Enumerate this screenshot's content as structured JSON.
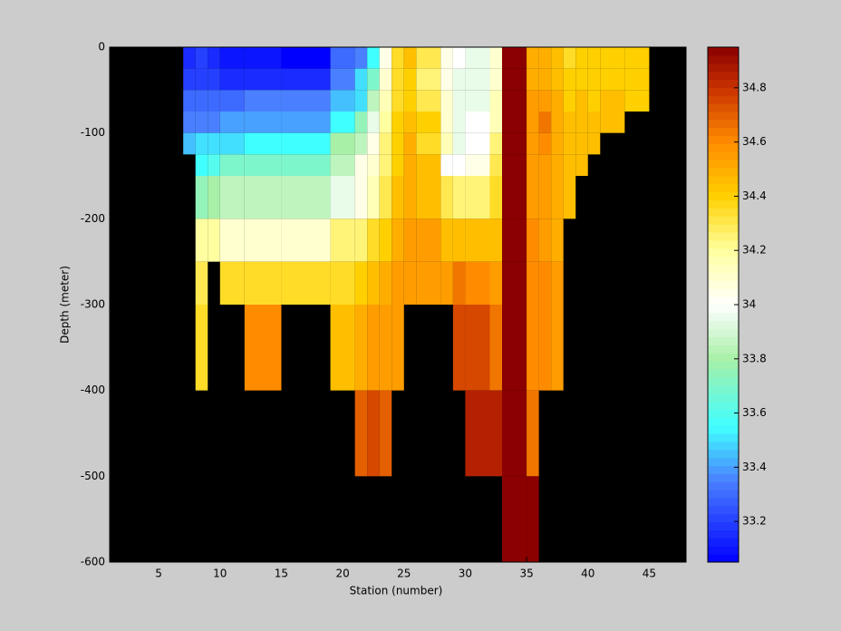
{
  "chart_data": {
    "type": "heatmap",
    "x_label": "Station (number)",
    "y_label": "Depth (meter)",
    "xlim": [
      1,
      48
    ],
    "xticks": [
      5,
      10,
      15,
      20,
      25,
      30,
      35,
      40,
      45
    ],
    "ylim": [
      -600,
      0
    ],
    "yticks": [
      -600,
      -500,
      -400,
      -300,
      -200,
      -100,
      0
    ],
    "clim": [
      33.05,
      34.95
    ],
    "cticks": [
      33.2,
      33.4,
      33.6,
      33.8,
      34,
      34.2,
      34.4,
      34.6,
      34.8
    ],
    "background": "#000000",
    "colormap": [
      [
        33.05,
        "#0000ff"
      ],
      [
        33.35,
        "#4a80ff"
      ],
      [
        33.55,
        "#40ffff"
      ],
      [
        33.8,
        "#a8f0a8"
      ],
      [
        34.0,
        "#ffffff"
      ],
      [
        34.2,
        "#ffffa0"
      ],
      [
        34.4,
        "#ffd000"
      ],
      [
        34.6,
        "#ff8c00"
      ],
      [
        34.8,
        "#c83200"
      ],
      [
        34.95,
        "#8b0000"
      ]
    ],
    "x_edges": [
      7,
      8,
      9,
      10,
      12,
      15,
      19,
      21,
      22,
      23,
      24,
      25,
      26,
      28,
      29,
      30,
      32,
      33,
      35,
      36,
      37,
      38,
      39,
      40,
      41,
      43,
      45
    ],
    "y_edges": [
      0,
      -25,
      -50,
      -75,
      -100,
      -125,
      -150,
      -200,
      -250,
      -300,
      -400,
      -500,
      -600
    ],
    "z": [
      [
        33.15,
        33.2,
        33.3,
        33.35,
        33.45,
        null,
        null,
        null,
        null,
        null,
        null,
        null
      ],
      [
        33.2,
        33.2,
        33.3,
        33.35,
        33.5,
        33.55,
        33.75,
        34.2,
        34.3,
        34.35,
        null,
        null
      ],
      [
        33.15,
        33.2,
        33.3,
        33.35,
        33.5,
        33.6,
        33.8,
        34.2,
        null,
        null,
        null,
        null
      ],
      [
        33.1,
        33.15,
        33.3,
        33.4,
        33.5,
        33.7,
        33.85,
        34.1,
        34.35,
        null,
        null,
        null
      ],
      [
        33.1,
        33.15,
        33.35,
        33.4,
        33.55,
        33.7,
        33.85,
        34.1,
        34.35,
        34.6,
        null,
        null
      ],
      [
        33.05,
        33.15,
        33.35,
        33.4,
        33.55,
        33.7,
        33.85,
        34.1,
        34.35,
        null,
        null,
        null
      ],
      [
        33.3,
        33.35,
        33.45,
        33.55,
        33.8,
        33.85,
        33.95,
        34.25,
        34.35,
        34.45,
        null,
        null
      ],
      [
        33.35,
        33.5,
        33.5,
        33.75,
        33.85,
        34.05,
        34.05,
        34.25,
        34.4,
        34.5,
        34.7,
        null
      ],
      [
        33.55,
        33.7,
        33.85,
        33.95,
        34.05,
        34.1,
        34.15,
        34.35,
        34.45,
        34.55,
        34.75,
        null
      ],
      [
        34.05,
        34.1,
        34.15,
        34.2,
        34.25,
        34.25,
        34.3,
        34.4,
        34.5,
        34.55,
        34.7,
        null
      ],
      [
        34.35,
        34.35,
        34.35,
        34.4,
        34.4,
        34.4,
        34.45,
        34.5,
        34.55,
        34.55,
        null,
        null
      ],
      [
        34.45,
        34.4,
        34.4,
        34.45,
        34.5,
        34.5,
        34.5,
        34.55,
        34.55,
        null,
        null,
        null
      ],
      [
        34.3,
        34.25,
        34.3,
        34.4,
        34.35,
        34.45,
        34.45,
        34.55,
        34.55,
        null,
        null,
        null
      ],
      [
        34.05,
        34.05,
        34.1,
        34.1,
        34.15,
        34.0,
        34.3,
        34.45,
        34.55,
        null,
        null,
        null
      ],
      [
        34.0,
        33.95,
        33.95,
        33.95,
        33.95,
        34.0,
        34.25,
        34.45,
        34.65,
        34.75,
        null,
        null
      ],
      [
        33.95,
        33.95,
        33.95,
        34.0,
        34.0,
        34.05,
        34.25,
        34.45,
        34.6,
        34.75,
        34.85,
        null
      ],
      [
        34.1,
        34.1,
        34.15,
        34.15,
        34.25,
        34.3,
        34.35,
        34.45,
        34.55,
        34.65,
        34.85,
        null
      ],
      [
        34.95,
        34.95,
        34.95,
        34.95,
        34.95,
        34.95,
        34.95,
        34.95,
        34.95,
        34.95,
        34.95,
        34.95
      ],
      [
        34.5,
        34.5,
        34.55,
        34.55,
        34.55,
        34.55,
        34.55,
        34.6,
        34.6,
        34.6,
        34.65,
        34.95
      ],
      [
        34.5,
        34.5,
        34.55,
        34.65,
        34.6,
        34.55,
        34.55,
        34.55,
        34.6,
        34.6,
        null,
        null
      ],
      [
        34.45,
        34.45,
        34.5,
        34.5,
        34.5,
        34.5,
        34.5,
        34.5,
        34.55,
        34.55,
        null,
        null
      ],
      [
        34.35,
        34.4,
        34.4,
        34.45,
        34.45,
        34.45,
        34.45,
        null,
        null,
        null,
        null,
        null
      ],
      [
        34.4,
        34.4,
        34.45,
        34.45,
        34.45,
        34.45,
        null,
        null,
        null,
        null,
        null,
        null
      ],
      [
        34.4,
        34.4,
        34.4,
        34.45,
        34.45,
        null,
        null,
        null,
        null,
        null,
        null,
        null
      ],
      [
        34.4,
        34.4,
        34.45,
        34.45,
        null,
        null,
        null,
        null,
        null,
        null,
        null,
        null
      ],
      [
        34.4,
        34.4,
        34.4,
        null,
        null,
        null,
        null,
        null,
        null,
        null,
        null,
        null
      ]
    ]
  }
}
